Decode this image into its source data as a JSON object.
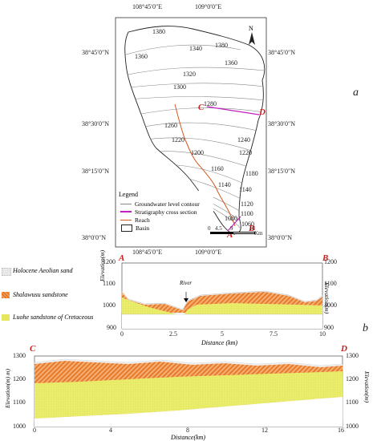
{
  "panel_labels": {
    "a": "a",
    "b": "b"
  },
  "map": {
    "top_lon": [
      "108°45′0″E",
      "109°0′0″E"
    ],
    "bottom_lon": [
      "108°45′0″E",
      "109°0′0″E"
    ],
    "left_lat": [
      "38°45′0″N",
      "38°30′0″N",
      "38°15′0″N",
      "38°0′0″N"
    ],
    "right_lat": [
      "38°45′0″N",
      "38°30′0″N",
      "38°15′0″N",
      "38°0′0″N"
    ],
    "north": "N",
    "contours": [
      "1380",
      "1340",
      "1380",
      "1360",
      "1360",
      "1320",
      "1300",
      "1280",
      "1260",
      "1240",
      "1220",
      "1220",
      "1200",
      "1180",
      "1160",
      "1140",
      "1140",
      "1120",
      "1100",
      "1080",
      "1060"
    ],
    "section_labels": {
      "A": "A",
      "B": "B",
      "C": "C",
      "D": "D"
    },
    "legend": {
      "title": "Legend",
      "items": [
        "Groundwater level contour",
        "Stratigraphy cross section",
        "Reach",
        "Basin"
      ]
    },
    "scale": {
      "ticks": [
        "0",
        "4.5",
        "9",
        "18"
      ],
      "unit": "Km"
    }
  },
  "lithology_legend": [
    "Holocene Aeolian sand",
    "Shalawusu sandstone",
    "Luohe sandstone of Cretaceous"
  ],
  "section_ab": {
    "start": "A",
    "end": "B",
    "ylabel": "Elevation(m)",
    "yticks": [
      "1200",
      "1100",
      "1000",
      "900"
    ],
    "xticks": [
      "0",
      "2.5",
      "5",
      "7.5",
      "10"
    ],
    "xlabel": "Distance (km)",
    "annotation": "River"
  },
  "section_cd": {
    "start": "C",
    "end": "D",
    "ylabel_left": "Elevation(m) m)",
    "ylabel_right": "Elevation(m)",
    "yticks": [
      "1300",
      "1200",
      "1100",
      "1000"
    ],
    "xticks": [
      "0",
      "4",
      "8",
      "12",
      "16"
    ],
    "xlabel": "Distance(km)"
  }
}
